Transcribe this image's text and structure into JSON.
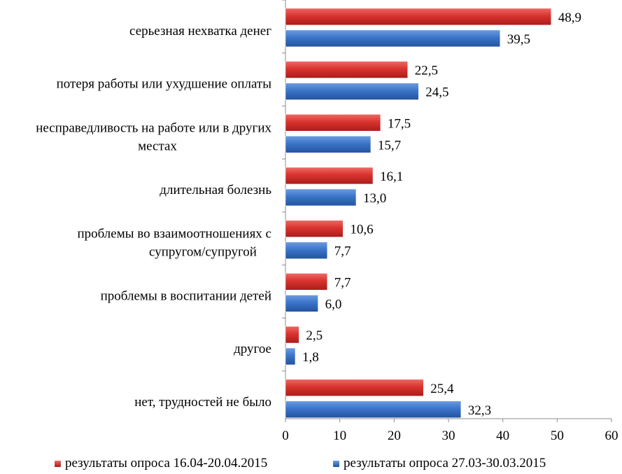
{
  "chart_data": {
    "type": "bar",
    "orientation": "horizontal",
    "categories": [
      [
        "серьезная нехватка денег"
      ],
      [
        "потеря работы или ухудшение оплаты"
      ],
      [
        "несправедливость на работе или в других",
        "местах"
      ],
      [
        "длительная болезнь"
      ],
      [
        "проблемы во взаимоотношениях с",
        "супругом/супругой"
      ],
      [
        "проблемы в воспитании детей"
      ],
      [
        "другое"
      ],
      [
        "нет, трудностей не было"
      ]
    ],
    "series": [
      {
        "name": "результаты опроса 16.04-20.04.2015",
        "color": "#d9332f",
        "values": [
          48.9,
          22.5,
          17.5,
          16.1,
          10.6,
          7.7,
          2.5,
          25.4
        ],
        "labels": [
          "48,9",
          "22,5",
          "17,5",
          "16,1",
          "10,6",
          "7,7",
          "2,5",
          "25,4"
        ]
      },
      {
        "name": "результаты опроса 27.03-30.03.2015",
        "color": "#3b74c9",
        "values": [
          39.5,
          24.5,
          15.7,
          13.0,
          7.7,
          6.0,
          1.8,
          32.3
        ],
        "labels": [
          "39,5",
          "24,5",
          "15,7",
          "13,0",
          "7,7",
          "6,0",
          "1,8",
          "32,3"
        ]
      }
    ],
    "xlim": [
      0,
      60
    ],
    "xticks": [
      "0",
      "10",
      "20",
      "30",
      "40",
      "50",
      "60"
    ],
    "legend_position": "bottom",
    "grid": false
  }
}
